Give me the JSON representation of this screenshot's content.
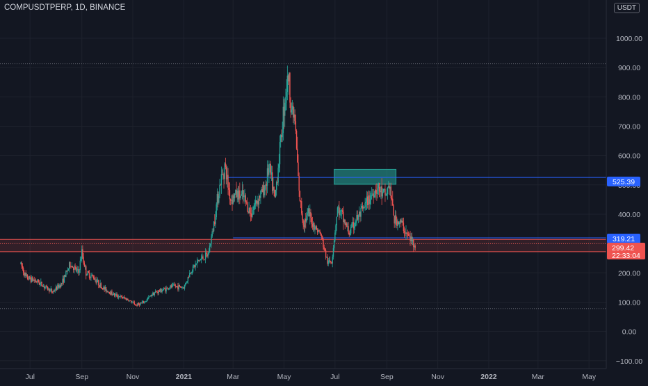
{
  "header": {
    "symbol_title": "COMPUSDTPERP, 1D, BINANCE",
    "currency": "USDT"
  },
  "price_labels": {
    "upper": "525.39",
    "lower": "319.21",
    "last": "299.42",
    "countdown": "22:33:04"
  },
  "colors": {
    "bg": "#131722",
    "grid": "#1e222d",
    "up": "#26a69a",
    "down": "#ef5350",
    "line": "#2962ff",
    "text": "#b2b5be",
    "zone": "#26a69a"
  },
  "chart_data": {
    "type": "candlestick",
    "symbol": "COMPUSDTPERP",
    "interval": "1D",
    "exchange": "BINANCE",
    "y_axis": {
      "ylim": [
        -110,
        1090
      ],
      "ticks": [
        -100,
        0,
        100,
        200,
        300,
        400,
        500,
        600,
        700,
        800,
        900,
        1000
      ],
      "tick_labels": [
        "−100.00",
        "0.00",
        "100.00",
        "200.00",
        "300.00",
        "400.00",
        "500.00",
        "600.00",
        "700.00",
        "800.00",
        "900.00",
        "1000.00"
      ]
    },
    "x_axis": {
      "start": "2020-06-20",
      "end": "2022-05-25",
      "tick_dates": [
        "2020-07-01",
        "2020-09-01",
        "2020-11-01",
        "2021-01-01",
        "2021-03-01",
        "2021-05-01",
        "2021-07-01",
        "2021-09-01",
        "2021-11-01",
        "2022-01-01",
        "2022-03-01",
        "2022-05-01"
      ],
      "tick_labels": [
        "Jul",
        "Sep",
        "Nov",
        "2021",
        "Mar",
        "May",
        "Jul",
        "Sep",
        "Nov",
        "2022",
        "Mar",
        "May"
      ]
    },
    "horizontal_lines": [
      {
        "value": 525.39,
        "start": "2021-02-22",
        "color": "#2962ff"
      },
      {
        "value": 319.21,
        "start": "2021-03-01",
        "color": "#2962ff"
      },
      {
        "value": 913,
        "color": "#5d606b",
        "style": "dotted"
      },
      {
        "value": 78,
        "color": "#5d606b",
        "style": "dotted"
      }
    ],
    "zones": [
      {
        "from": "2021-06-30",
        "to": "2021-09-12",
        "low": 502,
        "high": 553,
        "color": "#26a69a"
      },
      {
        "low": 272,
        "high": 314,
        "color": "#ef5350"
      }
    ],
    "last_price": 299.42,
    "price_path": [
      [
        "2020-06-20",
        230
      ],
      [
        "2020-06-26",
        185
      ],
      [
        "2020-07-10",
        170
      ],
      [
        "2020-07-20",
        150
      ],
      [
        "2020-07-28",
        135
      ],
      [
        "2020-08-08",
        165
      ],
      [
        "2020-08-18",
        230
      ],
      [
        "2020-08-28",
        200
      ],
      [
        "2020-09-01",
        270
      ],
      [
        "2020-09-06",
        200
      ],
      [
        "2020-09-15",
        185
      ],
      [
        "2020-09-25",
        150
      ],
      [
        "2020-10-10",
        125
      ],
      [
        "2020-10-25",
        110
      ],
      [
        "2020-11-05",
        90
      ],
      [
        "2020-11-15",
        100
      ],
      [
        "2020-11-25",
        130
      ],
      [
        "2020-12-10",
        145
      ],
      [
        "2020-12-20",
        155
      ],
      [
        "2021-01-01",
        150
      ],
      [
        "2021-01-10",
        210
      ],
      [
        "2021-01-20",
        245
      ],
      [
        "2021-01-30",
        260
      ],
      [
        "2021-02-05",
        350
      ],
      [
        "2021-02-10",
        450
      ],
      [
        "2021-02-14",
        510
      ],
      [
        "2021-02-19",
        565
      ],
      [
        "2021-02-26",
        450
      ],
      [
        "2021-03-05",
        470
      ],
      [
        "2021-03-14",
        455
      ],
      [
        "2021-03-22",
        400
      ],
      [
        "2021-03-30",
        450
      ],
      [
        "2021-04-08",
        490
      ],
      [
        "2021-04-13",
        560
      ],
      [
        "2021-04-20",
        450
      ],
      [
        "2021-04-27",
        650
      ],
      [
        "2021-05-02",
        800
      ],
      [
        "2021-05-06",
        870
      ],
      [
        "2021-05-10",
        760
      ],
      [
        "2021-05-14",
        720
      ],
      [
        "2021-05-19",
        470
      ],
      [
        "2021-05-24",
        370
      ],
      [
        "2021-05-30",
        400
      ],
      [
        "2021-06-06",
        360
      ],
      [
        "2021-06-14",
        330
      ],
      [
        "2021-06-22",
        235
      ],
      [
        "2021-06-27",
        240
      ],
      [
        "2021-07-04",
        420
      ],
      [
        "2021-07-10",
        390
      ],
      [
        "2021-07-18",
        335
      ],
      [
        "2021-07-26",
        380
      ],
      [
        "2021-08-03",
        410
      ],
      [
        "2021-08-12",
        460
      ],
      [
        "2021-08-20",
        490
      ],
      [
        "2021-08-30",
        460
      ],
      [
        "2021-09-04",
        500
      ],
      [
        "2021-09-10",
        380
      ],
      [
        "2021-09-18",
        370
      ],
      [
        "2021-09-25",
        330
      ],
      [
        "2021-10-01",
        310
      ],
      [
        "2021-10-05",
        295
      ]
    ]
  }
}
